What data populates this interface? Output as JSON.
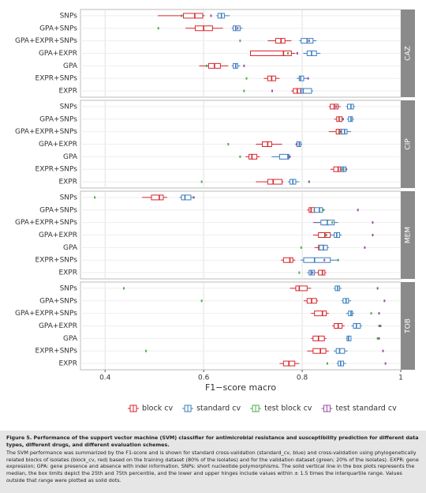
{
  "chart_data": {
    "type": "boxplot",
    "x_label": "F1−score macro",
    "xlim": [
      0.35,
      1.0
    ],
    "xticks": [
      0.4,
      0.6,
      0.8,
      1.0
    ],
    "grid": true,
    "categories": [
      "SNPs",
      "GPA+SNPs",
      "GPA+EXPR+SNPs",
      "GPA+EXPR",
      "GPA",
      "EXPR+SNPs",
      "EXPR"
    ],
    "legend": [
      {
        "name": "block cv",
        "color": "#d7262c"
      },
      {
        "name": "standard cv",
        "color": "#3a7dbf"
      },
      {
        "name": "test block cv",
        "color": "#4daf4a"
      },
      {
        "name": "test standard cv",
        "color": "#984ea3"
      }
    ],
    "facets": [
      {
        "label": "CAZ",
        "series": [
          {
            "values": [
              [
                0.507,
                0.559,
                0.582,
                0.598,
                0.602
              ],
              [
                0.563,
                0.583,
                0.6,
                0.618,
                0.639
              ],
              [
                0.73,
                0.746,
                0.757,
                0.765,
                0.778
              ],
              [
                0.695,
                0.695,
                0.762,
                0.778,
                0.786
              ],
              [
                0.591,
                0.61,
                0.622,
                0.634,
                0.65
              ],
              [
                0.722,
                0.73,
                0.738,
                0.746,
                0.754
              ],
              [
                0.778,
                0.782,
                0.79,
                0.797,
                0.802
              ]
            ]
          },
          {
            "values": [
              [
                0.626,
                0.629,
                0.636,
                0.642,
                0.653
              ],
              [
                0.657,
                0.66,
                0.665,
                0.674,
                0.679
              ],
              [
                0.794,
                0.798,
                0.81,
                0.822,
                0.829
              ],
              [
                0.802,
                0.81,
                0.819,
                0.829,
                0.837
              ],
              [
                0.657,
                0.66,
                0.665,
                0.669,
                0.674
              ],
              [
                0.789,
                0.794,
                0.797,
                0.803,
                0.81
              ],
              [
                0.795,
                0.798,
                0.802,
                0.819,
                0.822
              ]
            ]
          },
          {
            "values": [
              0.555,
              0.508,
              0.674,
              0.771,
              0.606,
              0.687,
              0.682
            ]
          },
          {
            "values": [
              0.615,
              0.669,
              0.814,
              0.79,
              0.682,
              0.812,
              0.739
            ]
          }
        ]
      },
      {
        "label": "CIP",
        "series": [
          {
            "values": [
              [
                0.854,
                0.857,
                0.865,
                0.873,
                0.878
              ],
              [
                0.865,
                0.87,
                0.875,
                0.881,
                0.884
              ],
              [
                0.854,
                0.869,
                0.875,
                0.88,
                0.889
              ],
              [
                0.706,
                0.719,
                0.73,
                0.738,
                0.759
              ],
              [
                0.685,
                0.692,
                0.698,
                0.708,
                0.714
              ],
              [
                0.857,
                0.864,
                0.873,
                0.878,
                0.883
              ],
              [
                0.706,
                0.73,
                0.741,
                0.759,
                0.762
              ]
            ]
          },
          {
            "values": [
              [
                0.889,
                0.892,
                0.899,
                0.904,
                0.907
              ],
              [
                0.891,
                0.894,
                0.899,
                0.902,
                0.905
              ],
              [
                0.873,
                0.88,
                0.886,
                0.891,
                0.899
              ],
              [
                0.786,
                0.789,
                0.794,
                0.797,
                0.8
              ],
              [
                0.738,
                0.754,
                0.771,
                0.773,
                0.775
              ],
              [
                0.876,
                0.88,
                0.884,
                0.889,
                0.892
              ],
              [
                0.771,
                0.775,
                0.781,
                0.787,
                0.794
              ]
            ]
          },
          {
            "values": [
              0.869,
              0.881,
              0.876,
              0.65,
              0.674,
              0.883,
              0.596
            ]
          },
          {
            "values": [
              0.869,
              0.883,
              0.878,
              0.789,
              0.775,
              0.889,
              0.814
            ]
          }
        ]
      },
      {
        "label": "MEM",
        "series": [
          {
            "values": [
              [
                0.475,
                0.494,
                0.51,
                0.518,
                0.526
              ],
              [
                0.81,
                0.814,
                0.818,
                0.825,
                0.838
              ],
              [
                0.822,
                0.841,
                0.848,
                0.854,
                0.865
              ],
              [
                0.822,
                0.833,
                0.846,
                0.857,
                0.873
              ],
              [
                0.825,
                0.833,
                0.841,
                0.845,
                0.849
              ],
              [
                0.757,
                0.762,
                0.775,
                0.781,
                0.786
              ],
              [
                0.829,
                0.833,
                0.841,
                0.846,
                0.849
              ]
            ]
          },
          {
            "values": [
              [
                0.551,
                0.555,
                0.562,
                0.574,
                0.58
              ],
              [
                0.822,
                0.825,
                0.835,
                0.841,
                0.846
              ],
              [
                0.825,
                0.838,
                0.851,
                0.865,
                0.873
              ],
              [
                0.857,
                0.865,
                0.87,
                0.876,
                0.88
              ],
              [
                0.832,
                0.835,
                0.843,
                0.851,
                0.854
              ],
              [
                0.797,
                0.803,
                0.825,
                0.857,
                0.873
              ],
              [
                0.81,
                0.814,
                0.818,
                0.825,
                0.829
              ]
            ]
          },
          {
            "values": [
              0.379,
              0.843,
              0.861,
              0.849,
              0.798,
              0.873,
              0.794
            ]
          },
          {
            "values": [
              0.58,
              0.913,
              0.943,
              0.943,
              0.927,
              0.845,
              0.821
            ]
          }
        ]
      },
      {
        "label": "TOB",
        "series": [
          {
            "values": [
              [
                0.775,
                0.787,
                0.794,
                0.81,
                0.818
              ],
              [
                0.803,
                0.81,
                0.819,
                0.829,
                0.832
              ],
              [
                0.818,
                0.825,
                0.841,
                0.849,
                0.854
              ],
              [
                0.861,
                0.865,
                0.873,
                0.881,
                0.886
              ],
              [
                0.818,
                0.822,
                0.833,
                0.845,
                0.849
              ],
              [
                0.81,
                0.822,
                0.837,
                0.848,
                0.854
              ],
              [
                0.754,
                0.762,
                0.773,
                0.785,
                0.794
              ]
            ]
          },
          {
            "values": [
              [
                0.864,
                0.867,
                0.872,
                0.876,
                0.88
              ],
              [
                0.88,
                0.883,
                0.889,
                0.894,
                0.899
              ],
              [
                0.889,
                0.894,
                0.899,
                0.902,
                0.905
              ],
              [
                0.9,
                0.904,
                0.91,
                0.918,
                0.921
              ],
              [
                0.889,
                0.891,
                0.894,
                0.899,
                0.9
              ],
              [
                0.864,
                0.869,
                0.876,
                0.886,
                0.892
              ],
              [
                0.87,
                0.873,
                0.878,
                0.884,
                0.889
              ]
            ]
          },
          {
            "values": [
              0.438,
              0.596,
              0.94,
              0.956,
              0.953,
              0.483,
              0.851
            ]
          },
          {
            "values": [
              0.953,
              0.967,
              0.956,
              0.959,
              0.956,
              0.964,
              0.969
            ]
          }
        ]
      }
    ]
  },
  "caption": {
    "title": "Figure 5.  Performance of the support vector machine (SVM) classifier for antimicrobial resistance and susceptibility prediction for different data types, different drugs, and different evaluation schemes.",
    "text": "The SVM performance was summarized by the F1-score and is shown for standard cross-validation (standard_cv, blue) and cross-validation using phylogenetically related blocks of isolates (block_cv, red) based on the training dataset (80% of the isolates) and for the validation dataset (green; 20% of the isolates). EXPR: gene expression; GPA: gene presence and absence with indel information. SNPs: short nucleotide polymorphisms. The solid vertical line in the box plots represents the median, the box limits depict the 25th and 75th percentile, and the lower and upper hinges include values within ± 1.5 times the interquartile range. Values outside that range were plotted as solid dots."
  }
}
